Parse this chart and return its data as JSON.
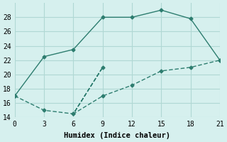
{
  "line1_x": [
    0,
    3,
    6,
    9,
    12,
    15,
    18,
    21
  ],
  "line1_y": [
    17.0,
    22.5,
    23.5,
    28.0,
    28.0,
    29.0,
    27.8,
    22.0
  ],
  "line2_x": [
    0,
    3,
    6,
    9,
    6,
    9,
    12,
    15,
    18,
    21
  ],
  "line2_y": [
    17.0,
    15.0,
    14.5,
    21.0,
    14.5,
    17.0,
    18.5,
    20.5,
    21.0,
    22.0
  ],
  "line_color": "#2d7d6f",
  "bg_color": "#d6f0ee",
  "grid_color": "#b0d8d4",
  "xlabel": "Humidex (Indice chaleur)",
  "xlim": [
    0,
    21
  ],
  "ylim": [
    14,
    30
  ],
  "xticks": [
    0,
    3,
    6,
    9,
    12,
    15,
    18,
    21
  ],
  "yticks": [
    14,
    16,
    18,
    20,
    22,
    24,
    26,
    28
  ],
  "font": "monospace",
  "fontsize_axis": 7,
  "fontsize_label": 7.5
}
